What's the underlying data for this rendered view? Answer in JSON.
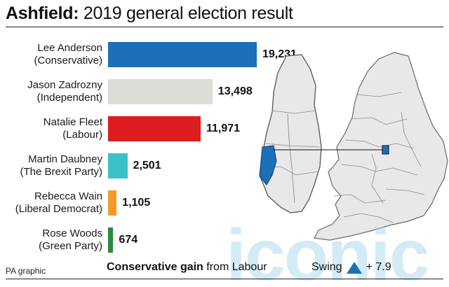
{
  "header": {
    "title_bold": "Ashfield:",
    "title_rest": " 2019 general election result"
  },
  "chart_data": {
    "type": "bar",
    "orientation": "horizontal",
    "title": "Ashfield: 2019 general election result",
    "categories": [
      {
        "name": "Lee Anderson",
        "party": "(Conservative)"
      },
      {
        "name": "Jason Zadrozny",
        "party": "(Independent)"
      },
      {
        "name": "Natalie Fleet",
        "party": "(Labour)"
      },
      {
        "name": "Martin Daubney",
        "party": "(The Brexit Party)"
      },
      {
        "name": "Rebecca Wain",
        "party": "(Liberal Democrat)"
      },
      {
        "name": "Rose Woods",
        "party": "(Green Party)"
      }
    ],
    "values": [
      19231,
      13498,
      11971,
      2501,
      1105,
      674
    ],
    "value_labels": [
      "19,231",
      "13,498",
      "11,971",
      "2,501",
      "1,105",
      "674"
    ],
    "colors": [
      "#1d6fb8",
      "#dcdcd8",
      "#dd1c20",
      "#3cc0c8",
      "#f39a2b",
      "#2a8a3e"
    ],
    "xlim": [
      0,
      19231
    ],
    "grid": false,
    "legend": "none"
  },
  "map": {
    "constituency_color": "#1d6fb8",
    "region_color": "#e8e8e8"
  },
  "footer": {
    "credit": "PA graphic",
    "gain_bold": "Conservative gain",
    "gain_rest": " from Labour",
    "swing_label": "Swing",
    "swing_value": "+ 7.9",
    "swing_color": "#1d6fb8"
  },
  "watermark": {
    "text": "iconic"
  }
}
